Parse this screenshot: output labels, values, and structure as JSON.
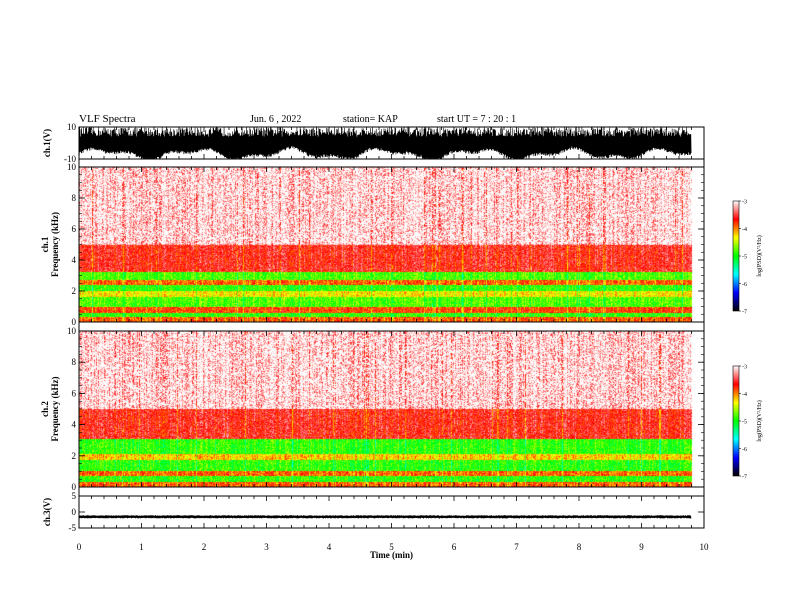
{
  "header": {
    "title": "VLF Spectra",
    "date": "Jun. 6 , 2022",
    "station": "station= KAP",
    "start": "start UT =  7 : 20 : 1"
  },
  "chart_data": [
    {
      "type": "line",
      "id": "ch1-waveform",
      "ylabel": "ch.1(V)",
      "ylim": [
        -10,
        10
      ],
      "yticks": [
        "10",
        "-10"
      ],
      "xlim": [
        0,
        10
      ],
      "description_of_trace": "dense noisy voltage trace filling roughly -8..+10 V, lower envelope oscillating slowly"
    },
    {
      "type": "heatmap",
      "id": "ch1-spectrogram",
      "ylabel": "ch.1\nFrequency (kHz)",
      "ylim": [
        0,
        10
      ],
      "yticks": [
        "0",
        "2",
        "4",
        "6",
        "8",
        "10"
      ],
      "xlim": [
        0,
        10
      ],
      "data_extent_min": 9.8,
      "bands_khz": [
        {
          "from": 0.0,
          "to": 0.3,
          "level": -3.9
        },
        {
          "from": 0.3,
          "to": 0.6,
          "level": -4.9
        },
        {
          "from": 0.6,
          "to": 1.0,
          "level": -3.8
        },
        {
          "from": 1.0,
          "to": 1.6,
          "level": -4.8
        },
        {
          "from": 1.6,
          "to": 2.0,
          "level": -4.3
        },
        {
          "from": 2.0,
          "to": 2.4,
          "level": -4.9
        },
        {
          "from": 2.4,
          "to": 2.7,
          "level": -3.9
        },
        {
          "from": 2.7,
          "to": 3.2,
          "level": -4.8
        },
        {
          "from": 3.2,
          "to": 5.0,
          "level": -3.6
        },
        {
          "from": 5.0,
          "to": 10.0,
          "level": -3.2
        }
      ]
    },
    {
      "type": "heatmap",
      "id": "ch2-spectrogram",
      "ylabel": "ch.2\nFrequency (kHz)",
      "ylim": [
        0,
        10
      ],
      "yticks": [
        "0",
        "2",
        "4",
        "6",
        "8",
        "10"
      ],
      "xlim": [
        0,
        10
      ],
      "data_extent_min": 9.8,
      "bands_khz": [
        {
          "from": 0.0,
          "to": 0.3,
          "level": -3.9
        },
        {
          "from": 0.3,
          "to": 0.7,
          "level": -4.9
        },
        {
          "from": 0.7,
          "to": 1.0,
          "level": -3.9
        },
        {
          "from": 1.0,
          "to": 1.7,
          "level": -4.9
        },
        {
          "from": 1.7,
          "to": 2.1,
          "level": -4.2
        },
        {
          "from": 2.1,
          "to": 3.1,
          "level": -4.9
        },
        {
          "from": 3.1,
          "to": 5.0,
          "level": -3.6
        },
        {
          "from": 5.0,
          "to": 10.0,
          "level": -3.2
        }
      ]
    },
    {
      "type": "line",
      "id": "ch3-waveform",
      "ylabel": "ch.3(V)",
      "ylim": [
        -5,
        5
      ],
      "yticks": [
        "5",
        "0",
        "-5"
      ],
      "xlim": [
        0,
        10
      ],
      "trace_level": -1.5,
      "trace_amplitude": 0.5
    }
  ],
  "xaxis": {
    "label": "Time (min)",
    "ticks": [
      "0",
      "1",
      "2",
      "3",
      "4",
      "5",
      "6",
      "7",
      "8",
      "9",
      "10"
    ]
  },
  "colorbar": {
    "label": "log(PSD)(V²/Hz)",
    "ticks": [
      "-3",
      "-4",
      "-5",
      "-6",
      "-7"
    ],
    "range": [
      -7,
      -3
    ],
    "colors": [
      "#000000",
      "#0000ff",
      "#00ffff",
      "#00ff00",
      "#ffff00",
      "#ff0000",
      "#ffffff"
    ]
  }
}
